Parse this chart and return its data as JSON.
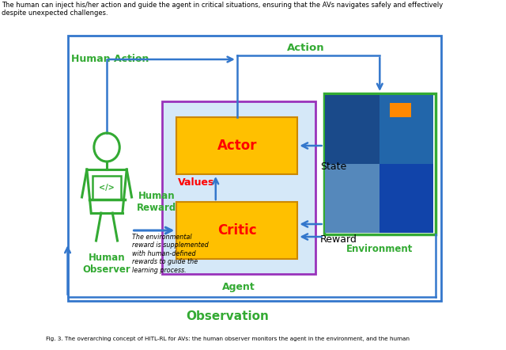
{
  "title_text": "The human can inject his/her action and guide the agent in critical situations, ensuring that the AVs navigates safely and effectively\ndespite unexpected challenges.",
  "outer_box_color": "#3377CC",
  "agent_box_color": "#9933BB",
  "agent_fill_color": "#D5E8F8",
  "actor_fill_color": "#FFC000",
  "critic_fill_color": "#FFC000",
  "env_box_color": "#33AA33",
  "human_color": "#33AA33",
  "blue": "#3377CC",
  "green": "#33AA33",
  "purple": "#9933BB",
  "red": "#FF0000",
  "gold": "#FFC000",
  "label_action": "Action",
  "label_state": "State",
  "label_reward": "Reward",
  "label_observation": "Observation",
  "label_human_action": "Human Action",
  "label_human_reward": "Human\nReward",
  "label_human_observer": "Human\nObserver",
  "label_environment": "Environment",
  "label_agent": "Agent",
  "label_actor": "Actor",
  "label_critic": "Critic",
  "label_values": "Values",
  "note_text": "The environmental\nreward is supplemented\nwith human-defined\nrewards to guide the\nlearning process.",
  "caption": "Fig. 3. The overarching concept of HITL-RL for AVs: the human observer monitors the agent in the environment, and the human"
}
